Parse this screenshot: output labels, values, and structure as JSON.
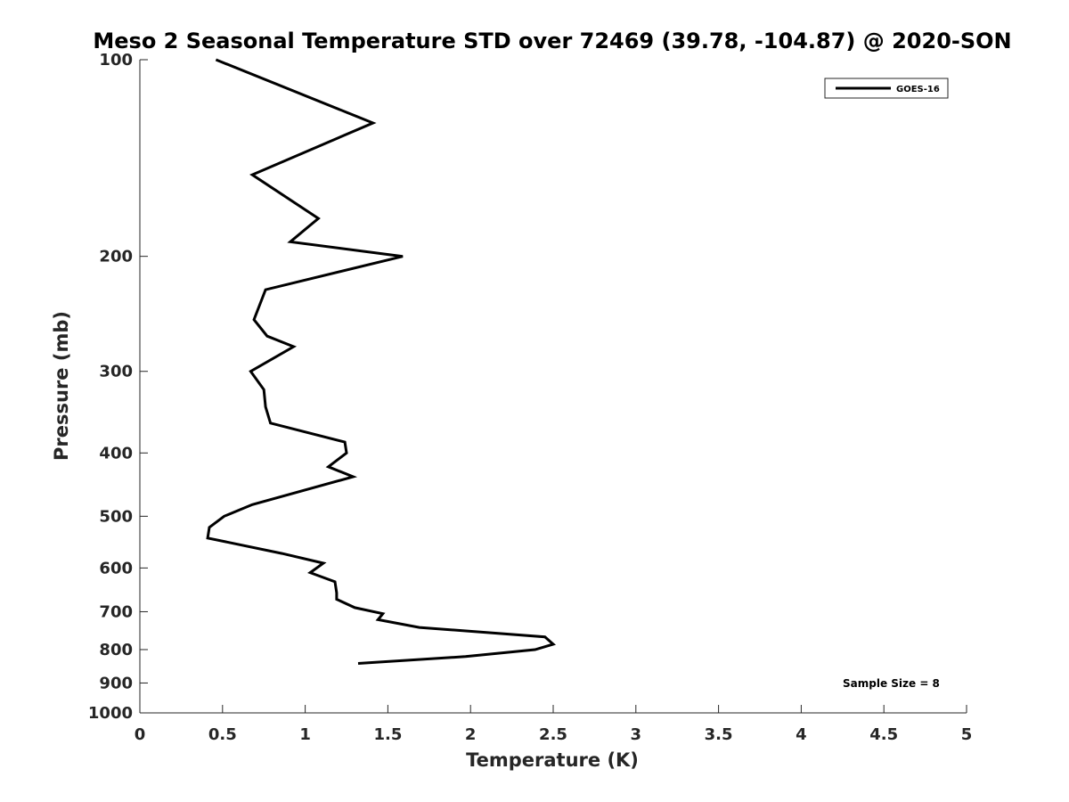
{
  "chart_data": {
    "type": "line",
    "title": "Meso 2 Seasonal Temperature STD over 72469 (39.78, -104.87) @ 2020-SON",
    "xlabel": "Temperature (K)",
    "ylabel": "Pressure (mb)",
    "xlim": [
      0,
      5
    ],
    "ylim": [
      100,
      1000
    ],
    "yscale": "log",
    "y_reversed": true,
    "grid": false,
    "x_ticks": [
      0,
      0.5,
      1,
      1.5,
      2,
      2.5,
      3,
      3.5,
      4,
      4.5,
      5
    ],
    "x_tick_labels": [
      "0",
      "0.5",
      "1",
      "1.5",
      "2",
      "2.5",
      "3",
      "3.5",
      "4",
      "4.5",
      "5"
    ],
    "y_ticks": [
      100,
      200,
      300,
      400,
      500,
      600,
      700,
      800,
      900,
      1000
    ],
    "y_tick_labels": [
      "100",
      "200",
      "300",
      "400",
      "500",
      "600",
      "700",
      "800",
      "900",
      "1000"
    ],
    "legend": {
      "position": "top-right",
      "entries": [
        "GOES-16"
      ]
    },
    "annotation": "Sample Size = 8",
    "series": [
      {
        "name": "GOES-16",
        "color": "#000000",
        "points": [
          {
            "x": 0.46,
            "y": 100
          },
          {
            "x": 1.41,
            "y": 125
          },
          {
            "x": 0.68,
            "y": 150
          },
          {
            "x": 1.08,
            "y": 175
          },
          {
            "x": 0.91,
            "y": 190
          },
          {
            "x": 1.59,
            "y": 200
          },
          {
            "x": 0.76,
            "y": 225
          },
          {
            "x": 0.69,
            "y": 250
          },
          {
            "x": 0.77,
            "y": 265
          },
          {
            "x": 0.93,
            "y": 275
          },
          {
            "x": 0.67,
            "y": 300
          },
          {
            "x": 0.75,
            "y": 320
          },
          {
            "x": 0.76,
            "y": 340
          },
          {
            "x": 0.79,
            "y": 360
          },
          {
            "x": 1.24,
            "y": 385
          },
          {
            "x": 1.25,
            "y": 400
          },
          {
            "x": 1.14,
            "y": 420
          },
          {
            "x": 1.29,
            "y": 435
          },
          {
            "x": 0.68,
            "y": 480
          },
          {
            "x": 0.51,
            "y": 500
          },
          {
            "x": 0.42,
            "y": 520
          },
          {
            "x": 0.41,
            "y": 540
          },
          {
            "x": 0.86,
            "y": 570
          },
          {
            "x": 1.11,
            "y": 590
          },
          {
            "x": 1.03,
            "y": 610
          },
          {
            "x": 1.18,
            "y": 630
          },
          {
            "x": 1.19,
            "y": 655
          },
          {
            "x": 1.19,
            "y": 670
          },
          {
            "x": 1.3,
            "y": 690
          },
          {
            "x": 1.47,
            "y": 705
          },
          {
            "x": 1.44,
            "y": 720
          },
          {
            "x": 1.69,
            "y": 740
          },
          {
            "x": 2.45,
            "y": 765
          },
          {
            "x": 2.5,
            "y": 785
          },
          {
            "x": 2.39,
            "y": 800
          },
          {
            "x": 1.97,
            "y": 820
          },
          {
            "x": 1.32,
            "y": 840
          }
        ]
      }
    ]
  }
}
